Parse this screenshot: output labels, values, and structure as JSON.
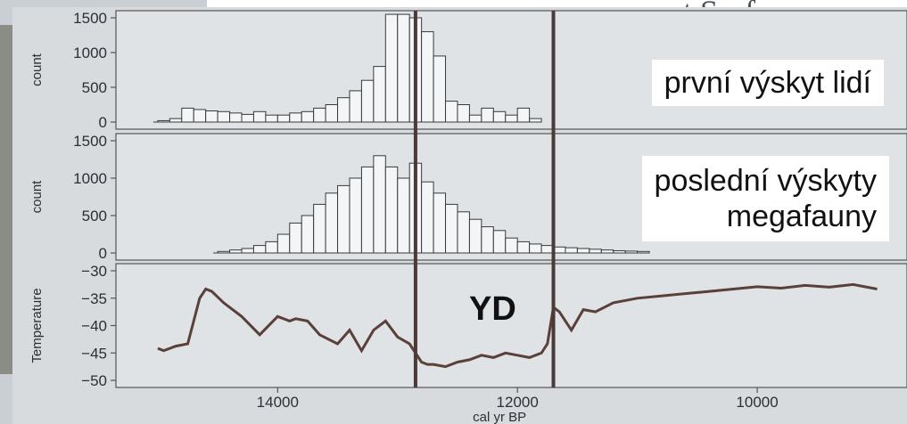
{
  "title_fragment": "rent Surfaces",
  "overlay_labels": {
    "first": "první výskyt lidí",
    "last_line1": "poslední výskyty",
    "last_line2": "megafauny",
    "yd": "YD"
  },
  "chart_data": [
    {
      "type": "bar",
      "panel": "top",
      "ylabel": "count",
      "ylim": [
        0,
        1500
      ],
      "yticks": [
        "1500",
        "1000",
        "500",
        "0"
      ],
      "bin_width": 100,
      "x_start": 15000,
      "values": [
        20,
        50,
        200,
        180,
        160,
        150,
        130,
        110,
        150,
        100,
        100,
        130,
        150,
        200,
        250,
        350,
        450,
        600,
        800,
        1550,
        1550,
        1500,
        1300,
        950,
        300,
        250,
        100,
        200,
        150,
        100,
        200,
        50
      ]
    },
    {
      "type": "bar",
      "panel": "middle",
      "ylabel": "count",
      "ylim": [
        0,
        1500
      ],
      "yticks": [
        "1500",
        "1000",
        "500",
        "0"
      ],
      "bin_width": 100,
      "x_start": 14500,
      "values": [
        20,
        40,
        60,
        100,
        150,
        250,
        400,
        500,
        650,
        800,
        900,
        1000,
        1150,
        1300,
        1150,
        1000,
        1200,
        950,
        800,
        650,
        550,
        450,
        350,
        300,
        200,
        150,
        120,
        100,
        80,
        70,
        60,
        50,
        40,
        30,
        25,
        20
      ]
    },
    {
      "type": "line",
      "panel": "bottom",
      "ylabel": "Temperature",
      "ylim": [
        -52,
        -28
      ],
      "yticks": [
        "−30",
        "−35",
        "−40",
        "−45",
        "−50"
      ],
      "x": [
        15000,
        14950,
        14850,
        14750,
        14650,
        14600,
        14550,
        14450,
        14300,
        14150,
        14000,
        13900,
        13850,
        13750,
        13650,
        13500,
        13400,
        13300,
        13200,
        13100,
        13000,
        12900,
        12800,
        12750,
        12700,
        12600,
        12500,
        12400,
        12300,
        12200,
        12100,
        12000,
        11900,
        11800,
        11750,
        11700,
        11650,
        11550,
        11450,
        11350,
        11200,
        11000,
        10800,
        10600,
        10400,
        10200,
        10000,
        9800,
        9600,
        9400,
        9200,
        9000
      ],
      "y": [
        -45,
        -45.5,
        -44.5,
        -44,
        -34,
        -32,
        -32.5,
        -35,
        -38,
        -42,
        -38,
        -39,
        -38.5,
        -39,
        -42,
        -44,
        -41,
        -45.5,
        -41,
        -39,
        -42.5,
        -44,
        -48,
        -48.5,
        -48.5,
        -49,
        -48,
        -47.5,
        -46.5,
        -47,
        -46,
        -46.5,
        -47,
        -46,
        -44,
        -36,
        -37,
        -41,
        -36.5,
        -37,
        -35,
        -34,
        -33.5,
        -33,
        -32.5,
        -32,
        -31.5,
        -31.8,
        -31.2,
        -31.6,
        -31,
        -32
      ]
    }
  ],
  "x_axis": {
    "label": "cal yr BP",
    "tick_labels": [
      "14000",
      "12000",
      "10000"
    ],
    "tick_values": [
      14000,
      12000,
      10000
    ],
    "range": [
      15200,
      8800
    ]
  },
  "vertical_lines": [
    12850,
    11700
  ]
}
